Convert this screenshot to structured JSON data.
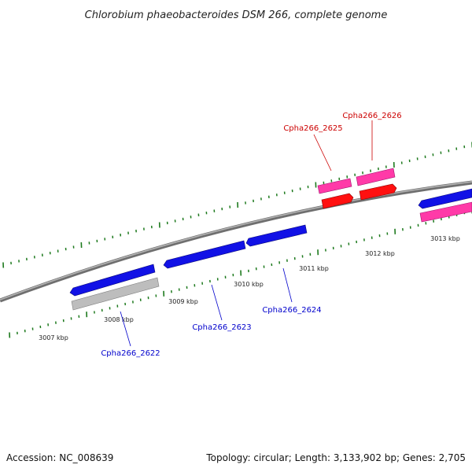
{
  "title": "Chlorobium phaeobacteroides DSM 266, complete genome",
  "footer": {
    "accession": "Accession: NC_008639",
    "summary": "Topology: circular; Length: 3,133,902 bp; Genes: 2,705"
  },
  "colors": {
    "backbone": "#7a7a7a",
    "tick": "#1e7a1e",
    "gene_forward": "#1010e0",
    "gene_reverse_red": "#ff0000",
    "gene_reverse_pink": "#ff3aa8",
    "gene_gray": "#bbbbbb",
    "label_blue": "#0000cc",
    "label_red": "#cc0000"
  },
  "tick_labels": {
    "inner": [
      "3007 kbp",
      "3008 kbp",
      "3009 kbp",
      "3010 kbp",
      "3011 kbp",
      "3012 kbp",
      "3013 kbp"
    ]
  },
  "gene_labels": {
    "g2622": "Cpha266_2622",
    "g2623": "Cpha266_2623",
    "g2624": "Cpha266_2624",
    "g2625": "Cpha266_2625",
    "g2626": "Cpha266_2626"
  }
}
